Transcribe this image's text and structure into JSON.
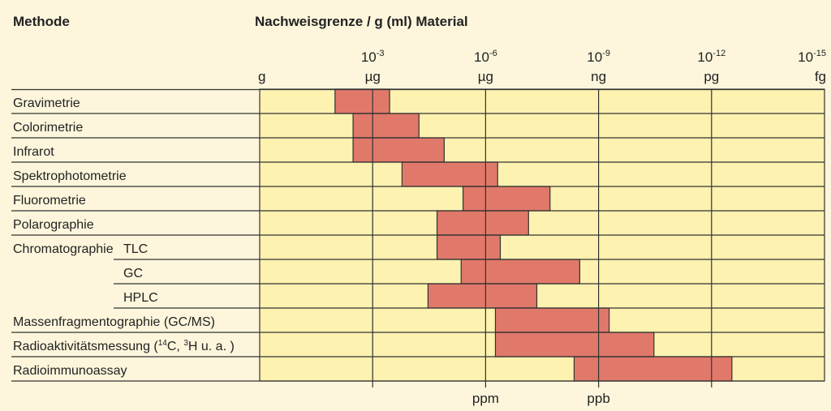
{
  "chart_data": {
    "type": "bar",
    "orientation": "horizontal-range",
    "title": "Nachweisgrenze / g (ml) Material",
    "row_header": "Methode",
    "xscale": "log10",
    "xlim": [
      0,
      -15
    ],
    "ticks": [
      {
        "exp": 0,
        "power": "",
        "unit": "g"
      },
      {
        "exp": -3,
        "power": "10",
        "sup": "-3",
        "unit": "µg"
      },
      {
        "exp": -6,
        "power": "10",
        "sup": "-6",
        "unit": "µg"
      },
      {
        "exp": -9,
        "power": "10",
        "sup": "-9",
        "unit": "ng"
      },
      {
        "exp": -12,
        "power": "10",
        "sup": "-12",
        "unit": "pg"
      },
      {
        "exp": -15,
        "power": "10",
        "sup": "-15",
        "unit": "fg"
      }
    ],
    "bottom_labels": [
      {
        "exp": -6,
        "text": "ppm"
      },
      {
        "exp": -9,
        "text": "ppb"
      }
    ],
    "rows": [
      {
        "label": "Gravimetrie",
        "indent": false,
        "from": -2.0,
        "to": -3.45
      },
      {
        "label": "Colorimetrie",
        "indent": false,
        "from": -2.48,
        "to": -4.23
      },
      {
        "label": "Infrarot",
        "indent": false,
        "from": -2.48,
        "to": -4.9
      },
      {
        "label": "Spektrophotometrie",
        "indent": false,
        "from": -3.78,
        "to": -6.32
      },
      {
        "label": "Fluorometrie",
        "indent": false,
        "from": -5.4,
        "to": -7.71
      },
      {
        "label": "Polarographie",
        "indent": false,
        "from": -4.71,
        "to": -7.14
      },
      {
        "label": "Chromatographie",
        "sublabel": "TLC",
        "indent": false,
        "from": -4.71,
        "to": -6.39
      },
      {
        "label": "GC",
        "indent": true,
        "from": -5.35,
        "to": -8.5
      },
      {
        "label": "HPLC",
        "indent": true,
        "from": -4.47,
        "to": -7.36
      },
      {
        "label": "Massenfragmentographie (GC/MS)",
        "indent": false,
        "from": -6.26,
        "to": -9.28
      },
      {
        "label": "Radioaktivitätsmessung (",
        "sup1": "14",
        "mid": "C, ",
        "sup2": "3",
        "tail": "H u. a. )",
        "indent": false,
        "from": -6.26,
        "to": -10.47
      },
      {
        "label": "Radioimmunoassay",
        "indent": false,
        "from": -8.35,
        "to": -12.54
      }
    ],
    "colors": {
      "cell": "#fdf2b0",
      "bar": "#e0796a",
      "line": "#333333",
      "background": "#fdf6dc"
    }
  }
}
